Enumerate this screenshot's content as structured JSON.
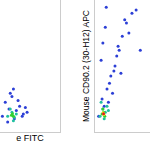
{
  "chart_data": [
    {
      "type": "scatter",
      "log": true,
      "tick_labels": false,
      "grid": false,
      "xlabel": "e FITC",
      "xlim": [
        10,
        1000
      ],
      "ylim": [
        10,
        100000
      ],
      "series": [
        {
          "color": "#2c3fd6",
          "x": [
            12,
            20,
            30,
            45,
            60,
            80,
            15,
            25,
            40,
            18,
            35,
            55,
            22,
            70,
            28
          ],
          "values": [
            30,
            50,
            25,
            60,
            35,
            40,
            80,
            120,
            90,
            20,
            45,
            30,
            150,
            55,
            200
          ]
        },
        {
          "color": "#20c0a0",
          "x": [
            18,
            25,
            30,
            22,
            35,
            28
          ],
          "values": [
            30,
            40,
            28,
            50,
            35,
            22
          ]
        },
        {
          "color": "#30d030",
          "x": [
            24,
            28,
            26
          ],
          "values": [
            32,
            30,
            36
          ]
        }
      ]
    },
    {
      "type": "scatter",
      "log": true,
      "tick_labels": false,
      "grid": false,
      "ylabel": "Mouse CD90.2 (30-H12) APC",
      "xlim": [
        10,
        100000
      ],
      "ylim": [
        10,
        100000
      ],
      "series": [
        {
          "color": "#2c3fd6",
          "x": [
            20,
            50,
            80,
            150,
            300,
            600,
            1000,
            2000,
            5000,
            30,
            40,
            100,
            200,
            400,
            800,
            3000,
            60,
            120,
            250,
            500,
            1500,
            10000,
            20000,
            70,
            35
          ],
          "values": [
            30,
            60,
            200,
            500,
            1000,
            3000,
            8000,
            20000,
            40000,
            1500,
            5000,
            80,
            150,
            2000,
            600,
            10000,
            15000,
            300,
            700,
            4000,
            25000,
            50000,
            3000,
            60000,
            100
          ]
        },
        {
          "color": "#20c0a0",
          "x": [
            25,
            40,
            60,
            30,
            80,
            50,
            100
          ],
          "values": [
            30,
            50,
            40,
            80,
            60,
            25,
            45
          ]
        },
        {
          "color": "#30d030",
          "x": [
            35,
            45,
            55,
            40
          ],
          "values": [
            35,
            40,
            30,
            50
          ]
        },
        {
          "color": "#f0e020",
          "x": [
            42,
            48
          ],
          "values": [
            38,
            34
          ]
        },
        {
          "color": "#e02020",
          "x": [
            45
          ],
          "values": [
            36
          ]
        }
      ]
    }
  ]
}
